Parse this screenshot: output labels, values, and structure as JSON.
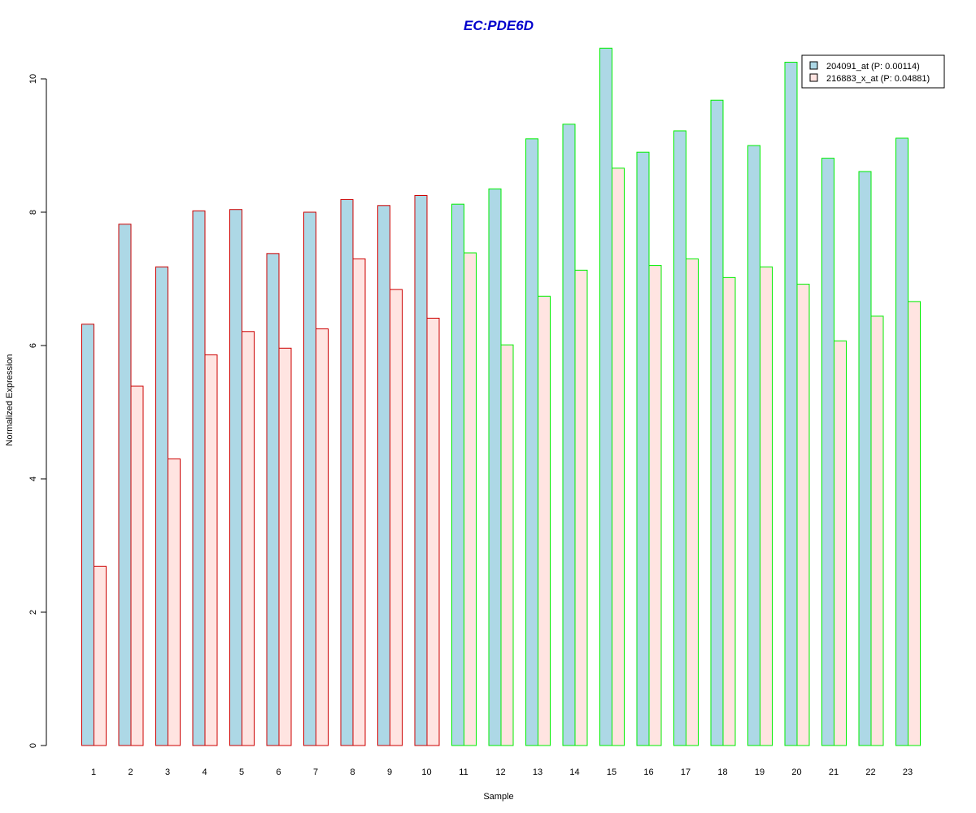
{
  "colors": {
    "title": "#0000cc",
    "series_fill": [
      "#add8e6",
      "#ffe4e1"
    ],
    "group_border": [
      "#cc0000",
      "#00ee00"
    ],
    "axis": "#000000"
  },
  "chart_data": {
    "type": "bar",
    "title": "EC:PDE6D",
    "xlabel": "Sample",
    "ylabel": "Normalized Expression",
    "ylim": [
      0,
      10.5
    ],
    "yticks": [
      0,
      2,
      4,
      6,
      8,
      10
    ],
    "grid": false,
    "legend_position": "top-right",
    "categories": [
      "1",
      "2",
      "3",
      "4",
      "5",
      "6",
      "7",
      "8",
      "9",
      "10",
      "11",
      "12",
      "13",
      "14",
      "15",
      "16",
      "17",
      "18",
      "19",
      "20",
      "21",
      "22",
      "23"
    ],
    "group_border_index": [
      0,
      0,
      0,
      0,
      0,
      0,
      0,
      0,
      0,
      0,
      1,
      1,
      1,
      1,
      1,
      1,
      1,
      1,
      1,
      1,
      1,
      1,
      1
    ],
    "series": [
      {
        "name": "204091_at (P: 0.00114)",
        "values": [
          6.32,
          7.82,
          7.18,
          8.02,
          8.04,
          7.38,
          8.0,
          8.19,
          8.1,
          8.25,
          8.12,
          8.35,
          9.1,
          9.32,
          10.46,
          8.9,
          9.22,
          9.68,
          9.0,
          10.25,
          8.81,
          8.61,
          9.11
        ]
      },
      {
        "name": "216883_x_at (P: 0.04881)",
        "values": [
          2.69,
          5.39,
          4.3,
          5.86,
          6.21,
          5.96,
          6.25,
          7.3,
          6.84,
          6.41,
          7.39,
          6.01,
          6.74,
          7.13,
          8.66,
          7.2,
          7.3,
          7.02,
          7.18,
          6.92,
          6.07,
          6.44,
          6.66
        ]
      }
    ]
  }
}
